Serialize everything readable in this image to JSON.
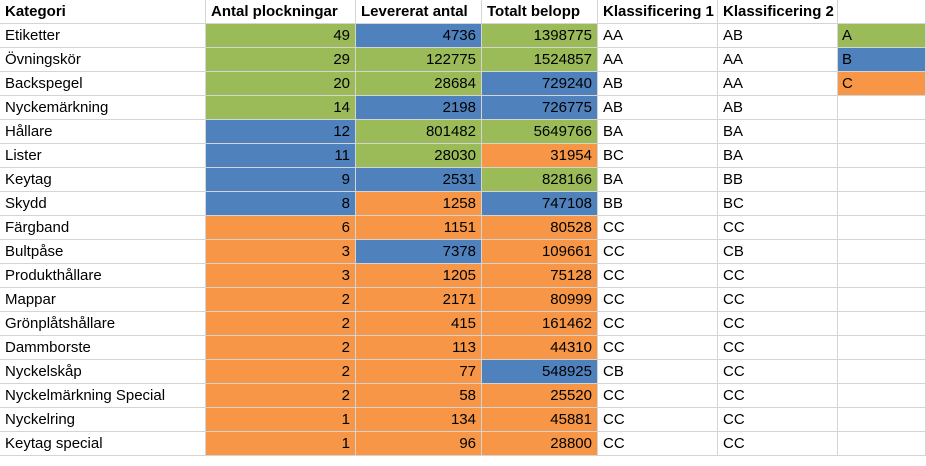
{
  "colors": {
    "A": "#9bbb59",
    "B": "#4f81bd",
    "C": "#f79646"
  },
  "headers": [
    "Kategori",
    "Antal plockningar",
    "Levererat antal",
    "Totalt belopp",
    "Klassificering 1",
    "Klassificering 2"
  ],
  "legend": [
    "A",
    "B",
    "C"
  ],
  "rows": [
    {
      "kategori": "Etiketter",
      "plock": "49",
      "plock_c": "A",
      "lev": "4736",
      "lev_c": "B",
      "belopp": "1398775",
      "belopp_c": "A",
      "k1": "AA",
      "k2": "AB"
    },
    {
      "kategori": "Övningskör",
      "plock": "29",
      "plock_c": "A",
      "lev": "122775",
      "lev_c": "A",
      "belopp": "1524857",
      "belopp_c": "A",
      "k1": "AA",
      "k2": "AA"
    },
    {
      "kategori": "Backspegel",
      "plock": "20",
      "plock_c": "A",
      "lev": "28684",
      "lev_c": "A",
      "belopp": "729240",
      "belopp_c": "B",
      "k1": "AB",
      "k2": "AA"
    },
    {
      "kategori": "Nyckemärkning",
      "plock": "14",
      "plock_c": "A",
      "lev": "2198",
      "lev_c": "B",
      "belopp": "726775",
      "belopp_c": "B",
      "k1": "AB",
      "k2": "AB"
    },
    {
      "kategori": "Hållare",
      "plock": "12",
      "plock_c": "B",
      "lev": "801482",
      "lev_c": "A",
      "belopp": "5649766",
      "belopp_c": "A",
      "k1": "BA",
      "k2": "BA"
    },
    {
      "kategori": "Lister",
      "plock": "11",
      "plock_c": "B",
      "lev": "28030",
      "lev_c": "A",
      "belopp": "31954",
      "belopp_c": "C",
      "k1": "BC",
      "k2": "BA"
    },
    {
      "kategori": "Keytag",
      "plock": "9",
      "plock_c": "B",
      "lev": "2531",
      "lev_c": "B",
      "belopp": "828166",
      "belopp_c": "A",
      "k1": "BA",
      "k2": "BB"
    },
    {
      "kategori": "Skydd",
      "plock": "8",
      "plock_c": "B",
      "lev": "1258",
      "lev_c": "C",
      "belopp": "747108",
      "belopp_c": "B",
      "k1": "BB",
      "k2": "BC"
    },
    {
      "kategori": "Färgband",
      "plock": "6",
      "plock_c": "C",
      "lev": "1151",
      "lev_c": "C",
      "belopp": "80528",
      "belopp_c": "C",
      "k1": "CC",
      "k2": "CC"
    },
    {
      "kategori": "Bultpåse",
      "plock": "3",
      "plock_c": "C",
      "lev": "7378",
      "lev_c": "B",
      "belopp": "109661",
      "belopp_c": "C",
      "k1": "CC",
      "k2": "CB"
    },
    {
      "kategori": "Produkthållare",
      "plock": "3",
      "plock_c": "C",
      "lev": "1205",
      "lev_c": "C",
      "belopp": "75128",
      "belopp_c": "C",
      "k1": "CC",
      "k2": "CC"
    },
    {
      "kategori": "Mappar",
      "plock": "2",
      "plock_c": "C",
      "lev": "2171",
      "lev_c": "C",
      "belopp": "80999",
      "belopp_c": "C",
      "k1": "CC",
      "k2": "CC"
    },
    {
      "kategori": "Grönplåtshållare",
      "plock": "2",
      "plock_c": "C",
      "lev": "415",
      "lev_c": "C",
      "belopp": "161462",
      "belopp_c": "C",
      "k1": "CC",
      "k2": "CC"
    },
    {
      "kategori": "Dammborste",
      "plock": "2",
      "plock_c": "C",
      "lev": "113",
      "lev_c": "C",
      "belopp": "44310",
      "belopp_c": "C",
      "k1": "CC",
      "k2": "CC"
    },
    {
      "kategori": "Nyckelskåp",
      "plock": "2",
      "plock_c": "C",
      "lev": "77",
      "lev_c": "C",
      "belopp": "548925",
      "belopp_c": "B",
      "k1": "CB",
      "k2": "CC"
    },
    {
      "kategori": "Nyckelmärkning Special",
      "plock": "2",
      "plock_c": "C",
      "lev": "58",
      "lev_c": "C",
      "belopp": "25520",
      "belopp_c": "C",
      "k1": "CC",
      "k2": "CC"
    },
    {
      "kategori": "Nyckelring",
      "plock": "1",
      "plock_c": "C",
      "lev": "134",
      "lev_c": "C",
      "belopp": "45881",
      "belopp_c": "C",
      "k1": "CC",
      "k2": "CC"
    },
    {
      "kategori": "Keytag special",
      "plock": "1",
      "plock_c": "C",
      "lev": "96",
      "lev_c": "C",
      "belopp": "28800",
      "belopp_c": "C",
      "k1": "CC",
      "k2": "CC"
    }
  ]
}
